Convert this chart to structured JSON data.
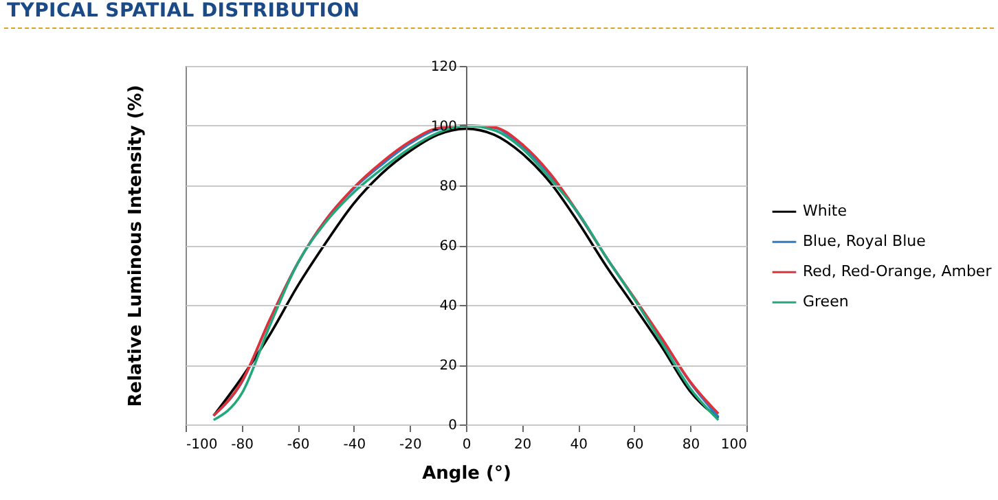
{
  "chart_data": {
    "type": "line",
    "title": "TYPICAL SPATIAL DISTRIBUTION",
    "xlabel": "Angle (°)",
    "ylabel": "Relative Luminous Intensity (%)",
    "x": [
      -90,
      -80,
      -70,
      -60,
      -50,
      -40,
      -30,
      -20,
      -10,
      0,
      10,
      20,
      30,
      40,
      50,
      60,
      70,
      80,
      90
    ],
    "series": [
      {
        "name": "White",
        "color": "#000000",
        "values": [
          2.9,
          15.6,
          30,
          46.4,
          60.8,
          74,
          84,
          91.5,
          97,
          99,
          97,
          90.7,
          81,
          67.7,
          53,
          39.5,
          25.7,
          11,
          2.2
        ]
      },
      {
        "name": "Blue, Royal Blue",
        "color": "#2e7bc4",
        "values": [
          3,
          14,
          35,
          54,
          68.5,
          79,
          87,
          94,
          98.8,
          100,
          99.3,
          93,
          83.5,
          70.5,
          56,
          42.2,
          28.3,
          14,
          2.5
        ]
      },
      {
        "name": "Red, Red-Orange, Amber",
        "color": "#e0303a",
        "values": [
          3,
          14.3,
          35,
          54,
          68.5,
          79.3,
          87.8,
          94.7,
          99.2,
          100,
          99.5,
          93.8,
          84,
          70.8,
          56,
          42.4,
          28.6,
          14.3,
          3.6
        ]
      },
      {
        "name": "Green",
        "color": "#22a87a",
        "values": [
          1.5,
          10.3,
          33,
          54,
          67.7,
          77.7,
          85.5,
          92.4,
          97.6,
          100,
          98.5,
          92.4,
          82.3,
          70.8,
          56,
          42,
          27,
          12,
          1.5
        ]
      }
    ],
    "xlim": [
      -100,
      100
    ],
    "xticks": [
      -100,
      -80,
      -60,
      -40,
      -20,
      0,
      20,
      40,
      60,
      80,
      100
    ],
    "ylim": [
      0,
      120
    ],
    "yticks": [
      0,
      20,
      40,
      60,
      80,
      100,
      120
    ],
    "grid": "y",
    "legend": "right",
    "marker": "none",
    "line_style": "solid"
  }
}
